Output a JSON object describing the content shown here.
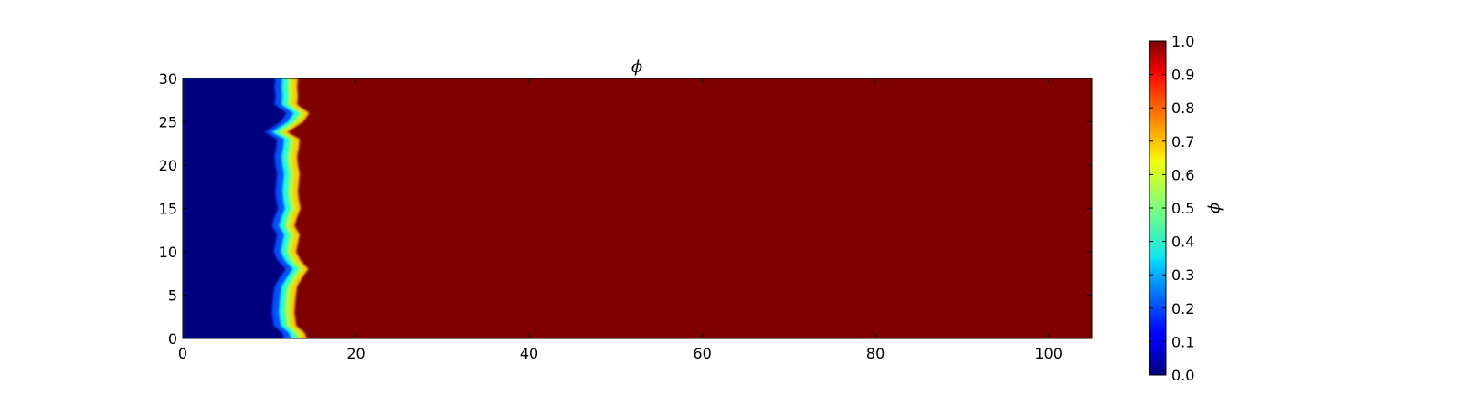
{
  "chart_data": {
    "type": "heatmap",
    "title": "ϕ",
    "xlabel": "",
    "ylabel": "",
    "xlim": [
      0,
      105
    ],
    "ylim": [
      0,
      30
    ],
    "x_ticks": [
      0,
      20,
      40,
      60,
      80,
      100
    ],
    "y_ticks": [
      0,
      5,
      10,
      15,
      20,
      25,
      30
    ],
    "grid": false,
    "colormap": "jet",
    "value_range": [
      0.0,
      1.0
    ],
    "field_description_values": {
      "left_region_value": 0.0,
      "right_region_value": 1.0
    },
    "interface_profile": {
      "y": [
        0,
        0.6,
        1.5,
        3,
        4.5,
        6,
        7.2,
        8,
        9,
        10,
        11,
        12,
        13,
        14,
        15,
        16,
        17,
        18,
        19,
        20,
        21,
        22,
        23,
        23.8,
        25,
        26,
        27,
        28,
        29,
        30
      ],
      "x": [
        13.0,
        12.8,
        11.8,
        11.6,
        11.7,
        11.9,
        12.6,
        13.2,
        12.3,
        11.8,
        12.0,
        12.2,
        11.6,
        11.9,
        12.3,
        12.1,
        12.0,
        12.1,
        12.2,
        12.0,
        11.9,
        12.1,
        12.2,
        10.8,
        12.6,
        13.3,
        11.9,
        12.0,
        11.9,
        12.0
      ]
    },
    "colorbar": {
      "label": "ϕ",
      "ticks": [
        "0.0",
        "0.1",
        "0.2",
        "0.3",
        "0.4",
        "0.5",
        "0.6",
        "0.7",
        "0.8",
        "0.9",
        "1.0"
      ]
    }
  }
}
